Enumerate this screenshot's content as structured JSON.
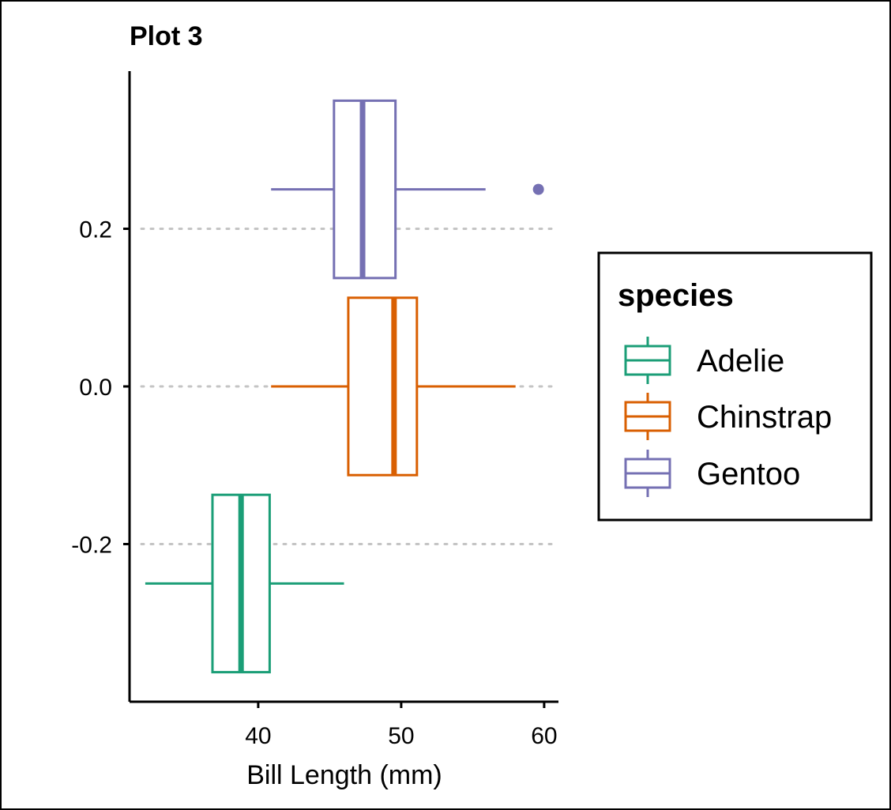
{
  "chart_data": {
    "type": "boxplot",
    "orientation": "horizontal",
    "title": "Plot 3",
    "xlabel": "Bill Length (mm)",
    "ylabel": "",
    "xlim": [
      31,
      61
    ],
    "ylim": [
      -0.4,
      0.4
    ],
    "x_ticks": [
      40,
      50,
      60
    ],
    "y_ticks": [
      0.2,
      0.0,
      -0.2
    ],
    "y_tick_labels": [
      "0.2",
      "0.0",
      "-0.2"
    ],
    "grid": "horizontal-dotted",
    "legend": {
      "title": "species",
      "placement": "right"
    },
    "series": [
      {
        "name": "Adelie",
        "color": "#1B9E77",
        "position": -0.25,
        "whisker_low": 32.1,
        "q1": 36.8,
        "median": 38.8,
        "q3": 40.8,
        "whisker_high": 46.0,
        "outliers": []
      },
      {
        "name": "Chinstrap",
        "color": "#D95F02",
        "position": 0.0,
        "whisker_low": 40.9,
        "q1": 46.3,
        "median": 49.5,
        "q3": 51.1,
        "whisker_high": 58.0,
        "outliers": []
      },
      {
        "name": "Gentoo",
        "color": "#7570B3",
        "position": 0.25,
        "whisker_low": 40.9,
        "q1": 45.3,
        "median": 47.3,
        "q3": 49.6,
        "whisker_high": 55.9,
        "outliers": [
          59.6
        ]
      }
    ]
  }
}
